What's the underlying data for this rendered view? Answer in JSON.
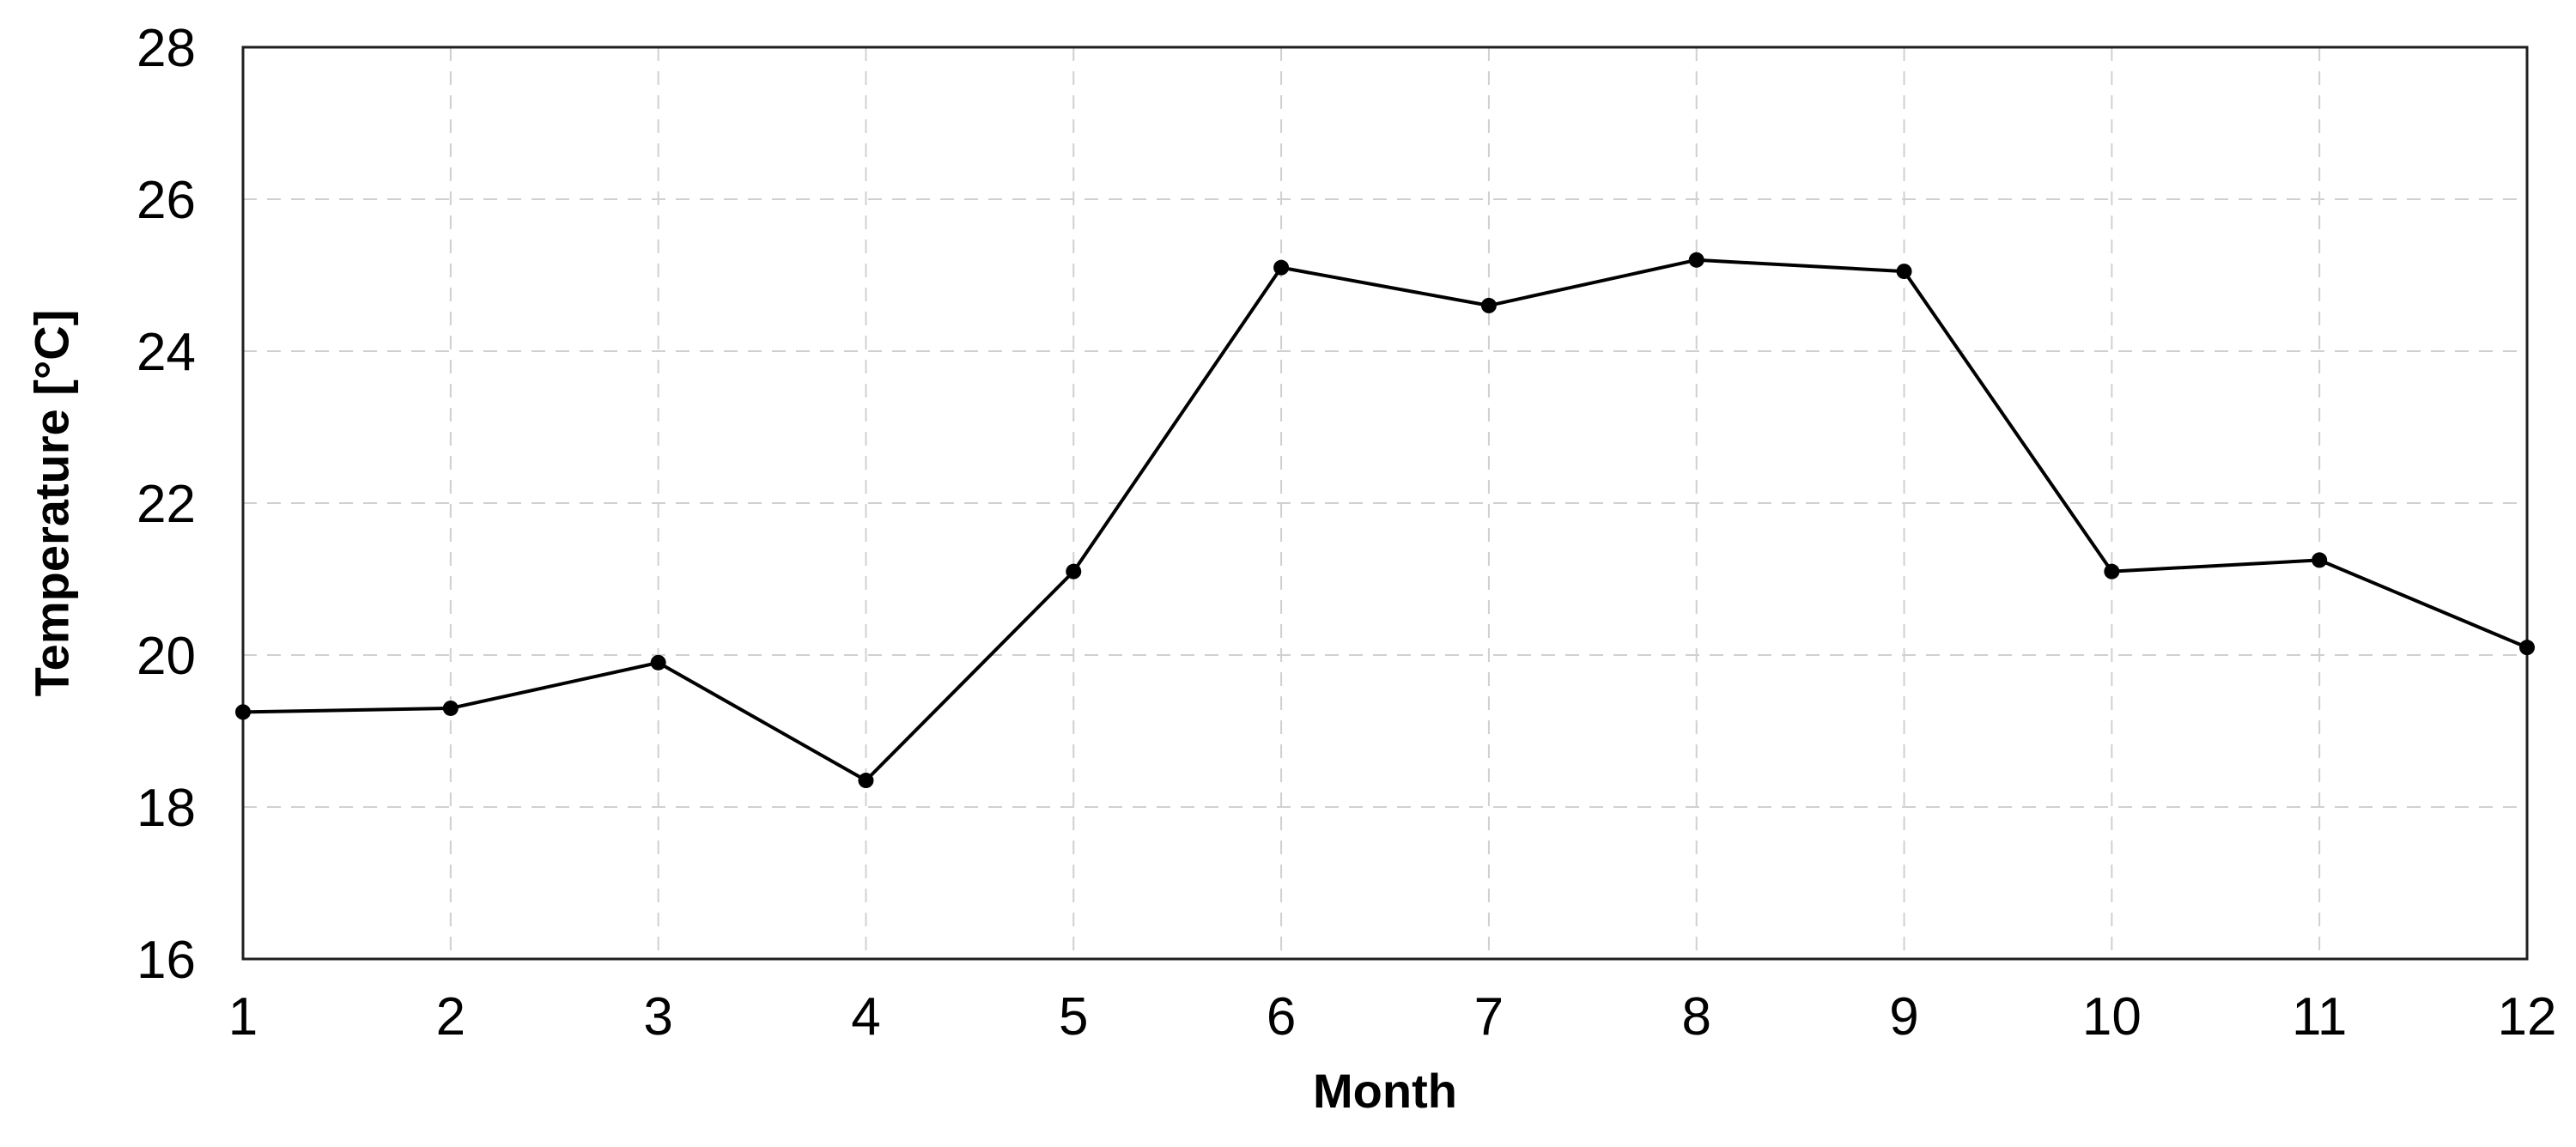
{
  "chart_data": {
    "type": "line",
    "title": "",
    "xlabel": "Month",
    "ylabel": "Temperature [°C]",
    "x": [
      1,
      2,
      3,
      4,
      5,
      6,
      7,
      8,
      9,
      10,
      11,
      12
    ],
    "values": [
      19.25,
      19.3,
      19.9,
      18.35,
      21.1,
      25.1,
      24.6,
      25.2,
      25.05,
      21.1,
      21.25,
      20.1
    ],
    "series_name": "Temperature",
    "xlim": [
      1,
      12
    ],
    "ylim": [
      16,
      28
    ],
    "yticks": [
      16,
      18,
      20,
      22,
      24,
      26,
      28
    ],
    "xticks": [
      1,
      2,
      3,
      4,
      5,
      6,
      7,
      8,
      9,
      10,
      11,
      12
    ],
    "grid": "dashed-both-axes",
    "legend_position": "none",
    "marker": "filled-circle",
    "colors": {
      "line": "#000000",
      "marker": "#000000",
      "grid": "#d0d0d0",
      "border": "#1f1f1f",
      "text": "#000000"
    }
  }
}
